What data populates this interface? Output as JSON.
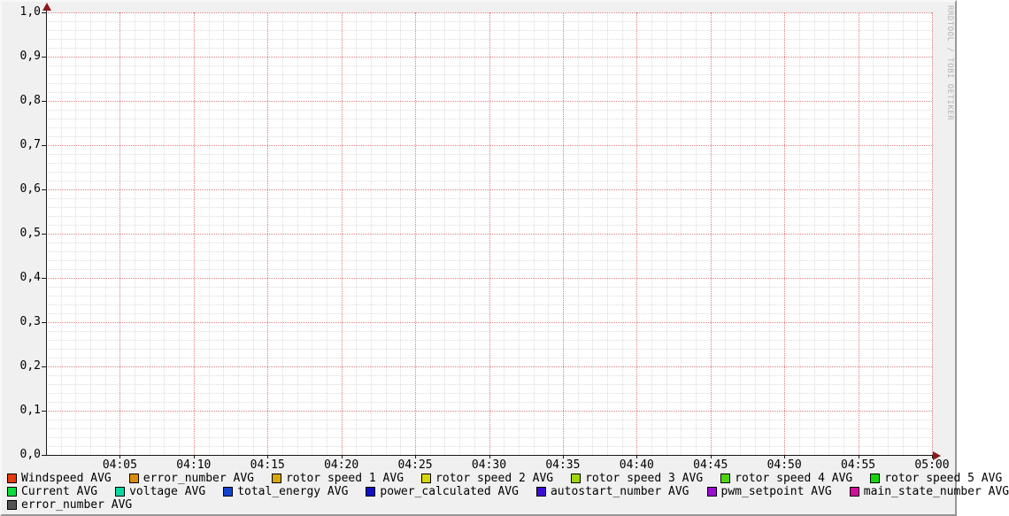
{
  "watermark": "RRDTOOL / TOBI OETIKER",
  "colors": {
    "background": "#f0f0f0",
    "canvas": "#ffffff",
    "major_grid": "#e08080",
    "minor_grid": "#dcdcdc",
    "axis": "#1a1a1a",
    "arrow": "#8b1a1a",
    "text": "#000000",
    "watermark_text": "#b3b3b3"
  },
  "chart_data": {
    "type": "line",
    "title": "",
    "xlabel": "",
    "ylabel": "",
    "grid": true,
    "legend_position": "bottom",
    "plot_empty": true,
    "x_axis": {
      "start": "04:00",
      "end": "05:00",
      "major_tick_minutes": 5,
      "minor_tick_minutes": 1,
      "tick_labels": [
        "04:05",
        "04:10",
        "04:15",
        "04:20",
        "04:25",
        "04:30",
        "04:35",
        "04:40",
        "04:45",
        "04:50",
        "04:55",
        "05:00"
      ]
    },
    "y_axis": {
      "min": 0.0,
      "max": 1.0,
      "major_step": 0.1,
      "minor_step": 0.02,
      "decimal_separator": ",",
      "tick_labels": [
        "0,0",
        "0,1",
        "0,2",
        "0,3",
        "0,4",
        "0,5",
        "0,6",
        "0,7",
        "0,8",
        "0,9",
        "1,0"
      ]
    },
    "series": [
      {
        "label": "Windspeed AVG",
        "color": "#E73A0E",
        "row": 0,
        "values": []
      },
      {
        "label": "error_number AVG",
        "color": "#DC8C0C",
        "row": 0,
        "values": []
      },
      {
        "label": "rotor speed 1 AVG",
        "color": "#D7A90A",
        "row": 0,
        "values": []
      },
      {
        "label": "rotor speed 2 AVG",
        "color": "#D6D60A",
        "row": 0,
        "values": []
      },
      {
        "label": "rotor speed 3 AVG",
        "color": "#9ED60A",
        "row": 0,
        "values": []
      },
      {
        "label": "rotor speed 4 AVG",
        "color": "#4ED60A",
        "row": 0,
        "values": []
      },
      {
        "label": "rotor speed 5 AVG",
        "color": "#15D60A",
        "row": 0,
        "values": []
      },
      {
        "label": "Current AVG",
        "color": "#0ADE3E",
        "row": 1,
        "values": []
      },
      {
        "label": "voltage AVG",
        "color": "#0BD7A1",
        "row": 1,
        "values": []
      },
      {
        "label": "total_energy AVG",
        "color": "#1242D2",
        "row": 1,
        "values": []
      },
      {
        "label": "power_calculated AVG",
        "color": "#0F0FC5",
        "row": 1,
        "values": []
      },
      {
        "label": "autostart_number AVG",
        "color": "#3A0ED2",
        "row": 1,
        "values": []
      },
      {
        "label": "pwm_setpoint AVG",
        "color": "#9A0DD2",
        "row": 1,
        "values": []
      },
      {
        "label": "main_state_number AVG",
        "color": "#D20D9E",
        "row": 1,
        "values": []
      },
      {
        "label": "error_number AVG",
        "color": "#555555",
        "row": 2,
        "values": []
      }
    ]
  }
}
